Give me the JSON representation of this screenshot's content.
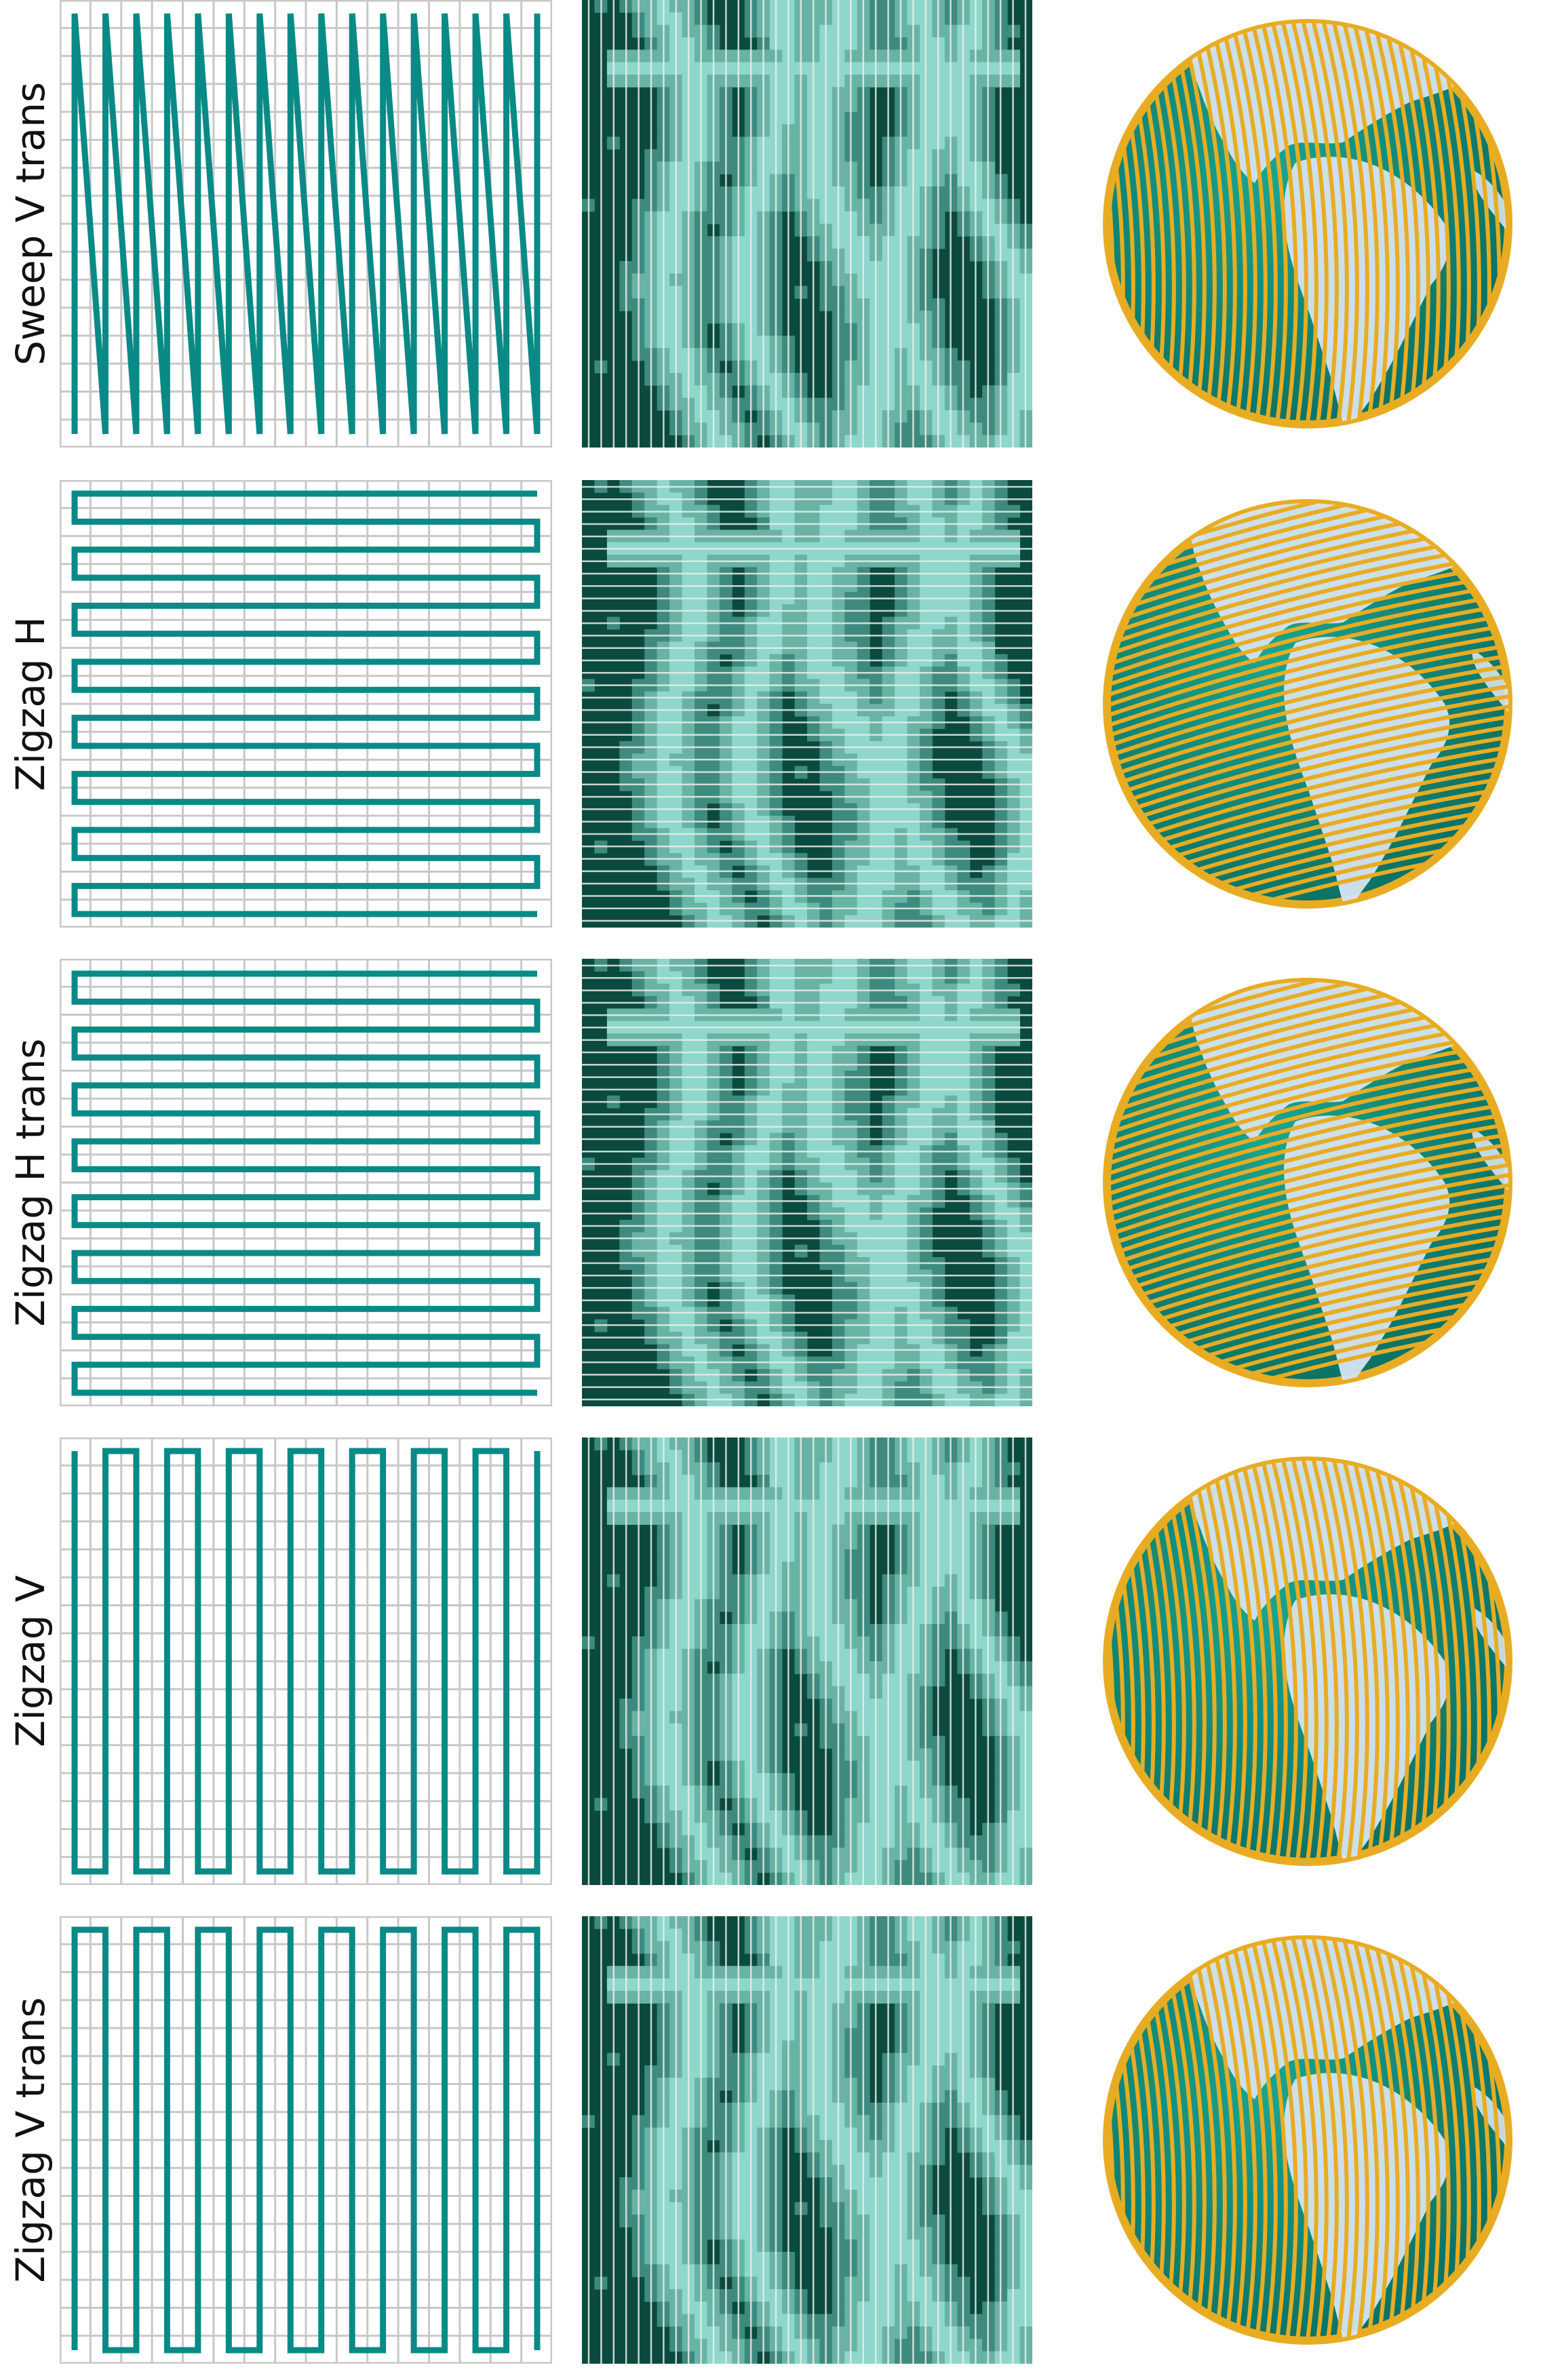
{
  "figure": {
    "rows": [
      {
        "id": "sweep-v-trans",
        "label": "Sweep V trans",
        "mode": "sweep-v"
      },
      {
        "id": "zigzag-h",
        "label": "Zigzag H",
        "mode": "zigzag-h"
      },
      {
        "id": "zigzag-h-trans",
        "label": "Zigzag H trans",
        "mode": "zigzag-h-trans"
      },
      {
        "id": "zigzag-v",
        "label": "Zigzag V",
        "mode": "zigzag-v"
      },
      {
        "id": "zigzag-v-trans",
        "label": "Zigzag V trans",
        "mode": "zigzag-v-trans"
      }
    ],
    "colors": {
      "path_teal": "#0a8a86",
      "grid_gray": "#c8c8c8",
      "dem_dark": "#0b4a3e",
      "dem_mid": "#3f8a7e",
      "dem_light": "#69b3a6",
      "dem_pale": "#8fd6cc",
      "scan_line": "#e8efe9",
      "globe_ring": "#e8ac22",
      "globe_ocean": "#0d8a7c",
      "land": "#d6e4f0"
    }
  }
}
